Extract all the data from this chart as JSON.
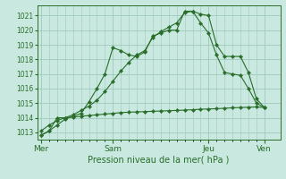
{
  "bg_color": "#c8e8e0",
  "grid_color": "#a0c8bc",
  "line_color": "#2a6e2a",
  "title": "Pression niveau de la mer( hPa )",
  "ylim": [
    1012.5,
    1021.7
  ],
  "yticks": [
    1013,
    1014,
    1015,
    1016,
    1017,
    1018,
    1019,
    1020,
    1021
  ],
  "day_labels": [
    "Mer",
    "Sam",
    "Jeu",
    "Ven"
  ],
  "day_positions": [
    0,
    9,
    21,
    28
  ],
  "xlim": [
    -0.5,
    30
  ],
  "series1_x": [
    0,
    1,
    2,
    3,
    4,
    5,
    6,
    7,
    8,
    9,
    10,
    11,
    12,
    13,
    14,
    15,
    16,
    17,
    18,
    19,
    20,
    21,
    22,
    23,
    24,
    25,
    26,
    27,
    28
  ],
  "series1_y": [
    1012.8,
    1013.1,
    1013.5,
    1013.9,
    1014.1,
    1014.3,
    1015.1,
    1016.0,
    1017.0,
    1018.8,
    1018.6,
    1018.3,
    1018.2,
    1018.5,
    1019.6,
    1019.8,
    1020.0,
    1020.0,
    1021.3,
    1021.3,
    1021.1,
    1021.0,
    1019.0,
    1018.2,
    1018.2,
    1018.2,
    1017.1,
    1015.3,
    1014.7
  ],
  "series2_x": [
    0,
    1,
    2,
    3,
    4,
    5,
    6,
    7,
    8,
    9,
    10,
    11,
    12,
    13,
    14,
    15,
    16,
    17,
    18,
    19,
    20,
    21,
    22,
    23,
    24,
    25,
    26,
    27,
    28
  ],
  "series2_y": [
    1013.1,
    1013.5,
    1013.8,
    1014.0,
    1014.2,
    1014.5,
    1014.8,
    1015.2,
    1015.8,
    1016.5,
    1017.2,
    1017.8,
    1018.3,
    1018.6,
    1019.5,
    1019.9,
    1020.2,
    1020.5,
    1021.2,
    1021.3,
    1020.5,
    1019.8,
    1018.3,
    1017.1,
    1017.0,
    1016.9,
    1016.0,
    1015.0,
    1014.7
  ],
  "series3_x": [
    0,
    1,
    2,
    3,
    4,
    5,
    6,
    7,
    8,
    9,
    10,
    11,
    12,
    13,
    14,
    15,
    16,
    17,
    18,
    19,
    20,
    21,
    22,
    23,
    24,
    25,
    26,
    27,
    28
  ],
  "series3_y": [
    1012.8,
    1013.1,
    1014.0,
    1014.0,
    1014.05,
    1014.1,
    1014.15,
    1014.2,
    1014.25,
    1014.3,
    1014.35,
    1014.38,
    1014.4,
    1014.42,
    1014.44,
    1014.46,
    1014.48,
    1014.5,
    1014.52,
    1014.55,
    1014.58,
    1014.6,
    1014.62,
    1014.65,
    1014.68,
    1014.7,
    1014.72,
    1014.74,
    1014.7
  ]
}
